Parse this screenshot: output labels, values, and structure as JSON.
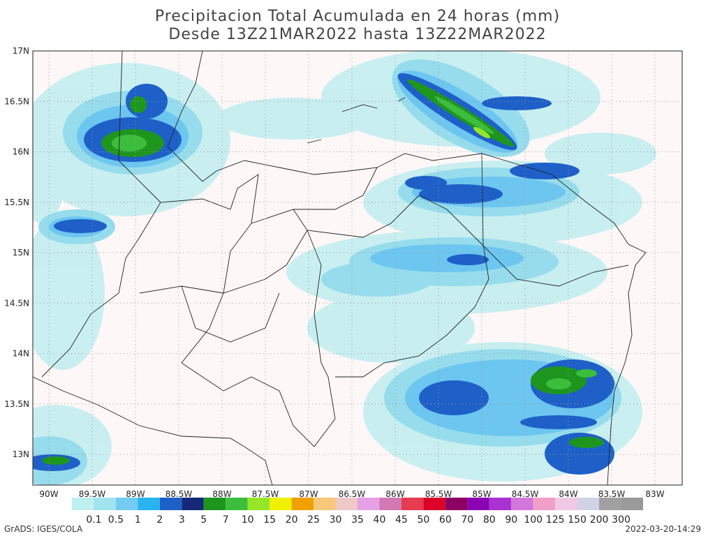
{
  "header": {
    "title": "Precipitacion Total Acumulada en 24 horas (mm)",
    "subtitle": "Desde 13Z21MAR2022 hasta 13Z22MAR2022"
  },
  "axes": {
    "x_labels": [
      "90W",
      "89.5W",
      "89W",
      "88.5W",
      "88W",
      "87.5W",
      "87W",
      "86.5W",
      "86W",
      "85.5W",
      "85W",
      "84.5W",
      "84W",
      "83.5W",
      "83W"
    ],
    "y_labels": [
      "17N",
      "16.5N",
      "16N",
      "15.5N",
      "15N",
      "14.5N",
      "14N",
      "13.5N",
      "13N"
    ],
    "grid": true
  },
  "colorbar": {
    "levels": [
      0.1,
      0.5,
      1,
      2,
      3,
      5,
      7,
      10,
      15,
      20,
      25,
      30,
      35,
      40,
      45,
      50,
      60,
      70,
      80,
      90,
      100,
      125,
      150,
      200,
      300
    ],
    "colors": [
      "#bff0f0",
      "#a0e4ee",
      "#72cbf0",
      "#28b4f0",
      "#1e60c8",
      "#142a78",
      "#1e961e",
      "#3cbe3c",
      "#96e628",
      "#f0f000",
      "#f0a000",
      "#f8c878",
      "#f0c8c8",
      "#e6a0e6",
      "#d278b4",
      "#e63c50",
      "#dc0028",
      "#8c0064",
      "#8c00b4",
      "#aa32d2",
      "#d278dc",
      "#f0a0c8",
      "#f0c8e6",
      "#d2d2e6",
      "#a0a0a0",
      "#9a9a9a"
    ]
  },
  "footer": {
    "left": "GrADS: IGES/COLA",
    "right": "2022-03-20-14:29"
  }
}
